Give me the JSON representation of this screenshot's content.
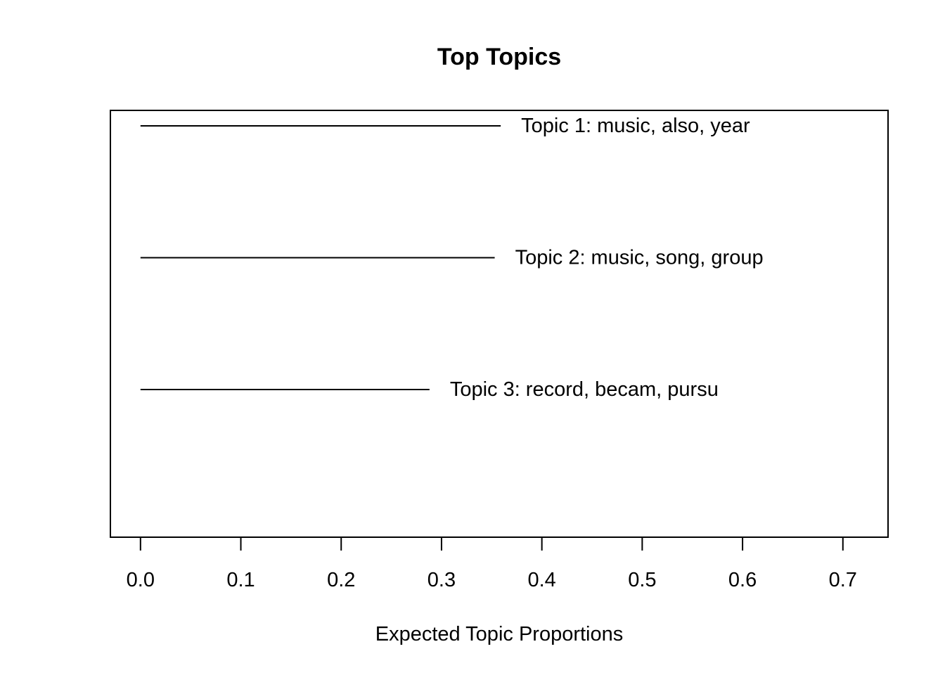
{
  "chart_data": {
    "type": "bar",
    "title": "Top Topics",
    "xlabel": "Expected Topic Proportions",
    "ylabel": "",
    "xlim": [
      -0.03,
      0.745
    ],
    "x_ticks": [
      0.0,
      0.1,
      0.2,
      0.3,
      0.4,
      0.5,
      0.6,
      0.7
    ],
    "x_tick_labels": [
      "0.0",
      "0.1",
      "0.2",
      "0.3",
      "0.4",
      "0.5",
      "0.6",
      "0.7"
    ],
    "orientation": "horizontal",
    "grid": false,
    "legend": "none",
    "series": [
      {
        "categories": [
          "Topic 1: music, also, year",
          "Topic 2: music, song, group",
          "Topic 3: record, becam, pursu"
        ],
        "values": [
          0.359,
          0.353,
          0.288
        ]
      }
    ]
  }
}
